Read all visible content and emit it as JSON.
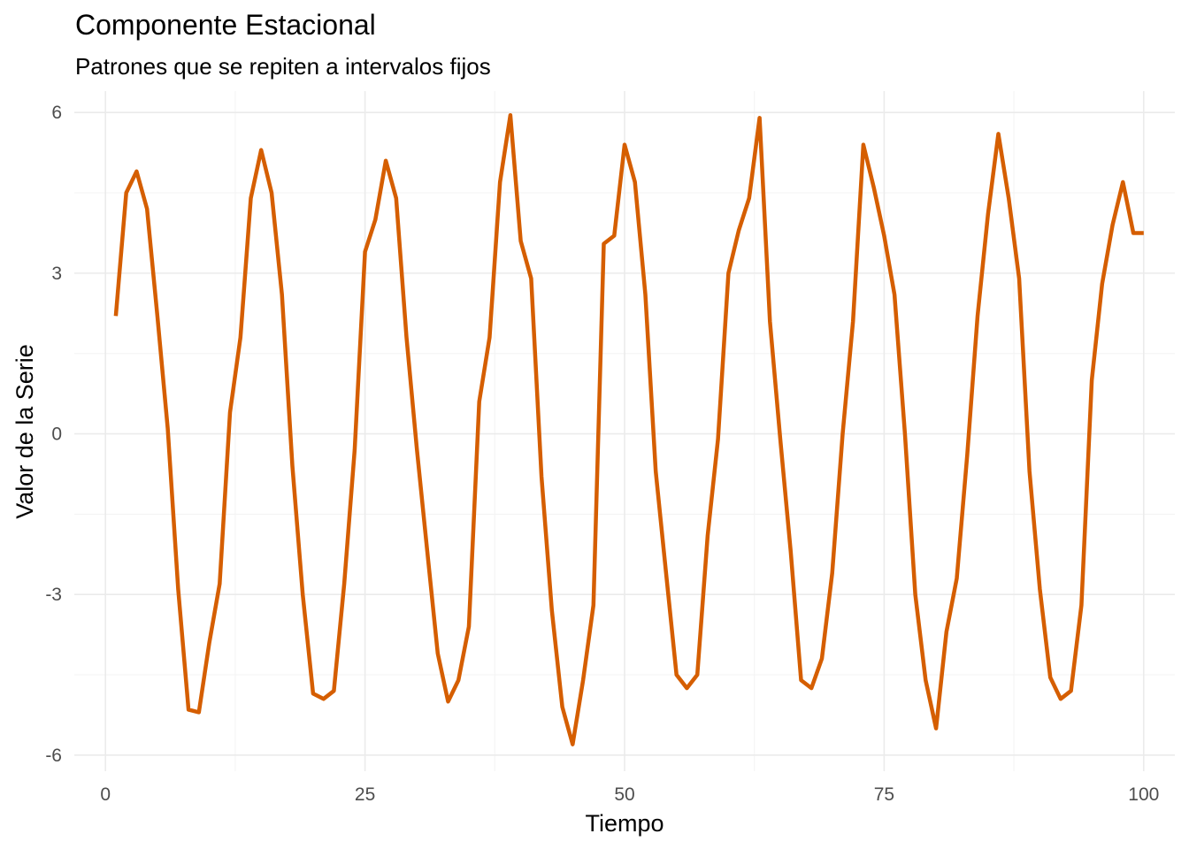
{
  "chart_data": {
    "type": "line",
    "title": "Componente Estacional",
    "subtitle": "Patrones que se repiten a intervalos fijos",
    "xlabel": "Tiempo",
    "ylabel": "Valor de la Serie",
    "xlim": [
      -3,
      103
    ],
    "ylim": [
      -6.3,
      6.4
    ],
    "x_ticks": [
      0,
      25,
      50,
      75,
      100
    ],
    "x_tick_labels": [
      "0",
      "25",
      "50",
      "75",
      "100"
    ],
    "x_minor_ticks": [
      12.5,
      37.5,
      62.5,
      87.5
    ],
    "y_ticks": [
      -6,
      -3,
      0,
      3,
      6
    ],
    "y_tick_labels": [
      "-6",
      "-3",
      "0",
      "3",
      "6"
    ],
    "y_minor_ticks": [
      -4.5,
      -1.5,
      1.5,
      4.5
    ],
    "grid": true,
    "legend": "none",
    "series": [
      {
        "color": "#D55E00",
        "x": [
          1,
          2,
          3,
          4,
          5,
          6,
          7,
          8,
          9,
          10,
          11,
          12,
          13,
          14,
          15,
          16,
          17,
          18,
          19,
          20,
          21,
          22,
          23,
          24,
          25,
          26,
          27,
          28,
          29,
          30,
          31,
          32,
          33,
          34,
          35,
          36,
          37,
          38,
          39,
          40,
          41,
          42,
          43,
          44,
          45,
          46,
          47,
          48,
          49,
          50,
          51,
          52,
          53,
          54,
          55,
          56,
          57,
          58,
          59,
          60,
          61,
          62,
          63,
          64,
          65,
          66,
          67,
          68,
          69,
          70,
          71,
          72,
          73,
          74,
          75,
          76,
          77,
          78,
          79,
          80,
          81,
          82,
          83,
          84,
          85,
          86,
          87,
          88,
          89,
          90,
          91,
          92,
          93,
          94,
          95,
          96,
          97,
          98,
          99,
          100
        ],
        "y": [
          2.2,
          4.5,
          4.9,
          4.2,
          2.2,
          0.1,
          -2.9,
          -5.15,
          -5.2,
          -3.9,
          -2.8,
          0.4,
          1.8,
          4.4,
          5.3,
          4.5,
          2.6,
          -0.6,
          -3.0,
          -4.85,
          -4.95,
          -4.8,
          -2.8,
          -0.3,
          3.4,
          4.0,
          5.1,
          4.4,
          1.8,
          -0.3,
          -2.2,
          -4.1,
          -5.0,
          -4.6,
          -3.6,
          0.6,
          1.8,
          4.7,
          5.95,
          3.6,
          2.9,
          -0.8,
          -3.3,
          -5.1,
          -5.8,
          -4.6,
          -3.2,
          3.55,
          3.7,
          5.4,
          4.7,
          2.6,
          -0.7,
          -2.6,
          -4.5,
          -4.75,
          -4.5,
          -1.9,
          -0.1,
          3.0,
          3.8,
          4.4,
          5.9,
          2.1,
          -0.1,
          -2.2,
          -4.6,
          -4.75,
          -4.2,
          -2.6,
          0.0,
          2.1,
          5.4,
          4.6,
          3.7,
          2.6,
          0.0,
          -3.0,
          -4.6,
          -5.5,
          -3.7,
          -2.7,
          -0.4,
          2.2,
          4.1,
          5.6,
          4.4,
          2.9,
          -0.7,
          -2.9,
          -4.55,
          -4.95,
          -4.8,
          -3.2,
          1.0,
          2.8,
          3.9,
          4.7,
          3.75,
          3.75
        ]
      }
    ]
  }
}
